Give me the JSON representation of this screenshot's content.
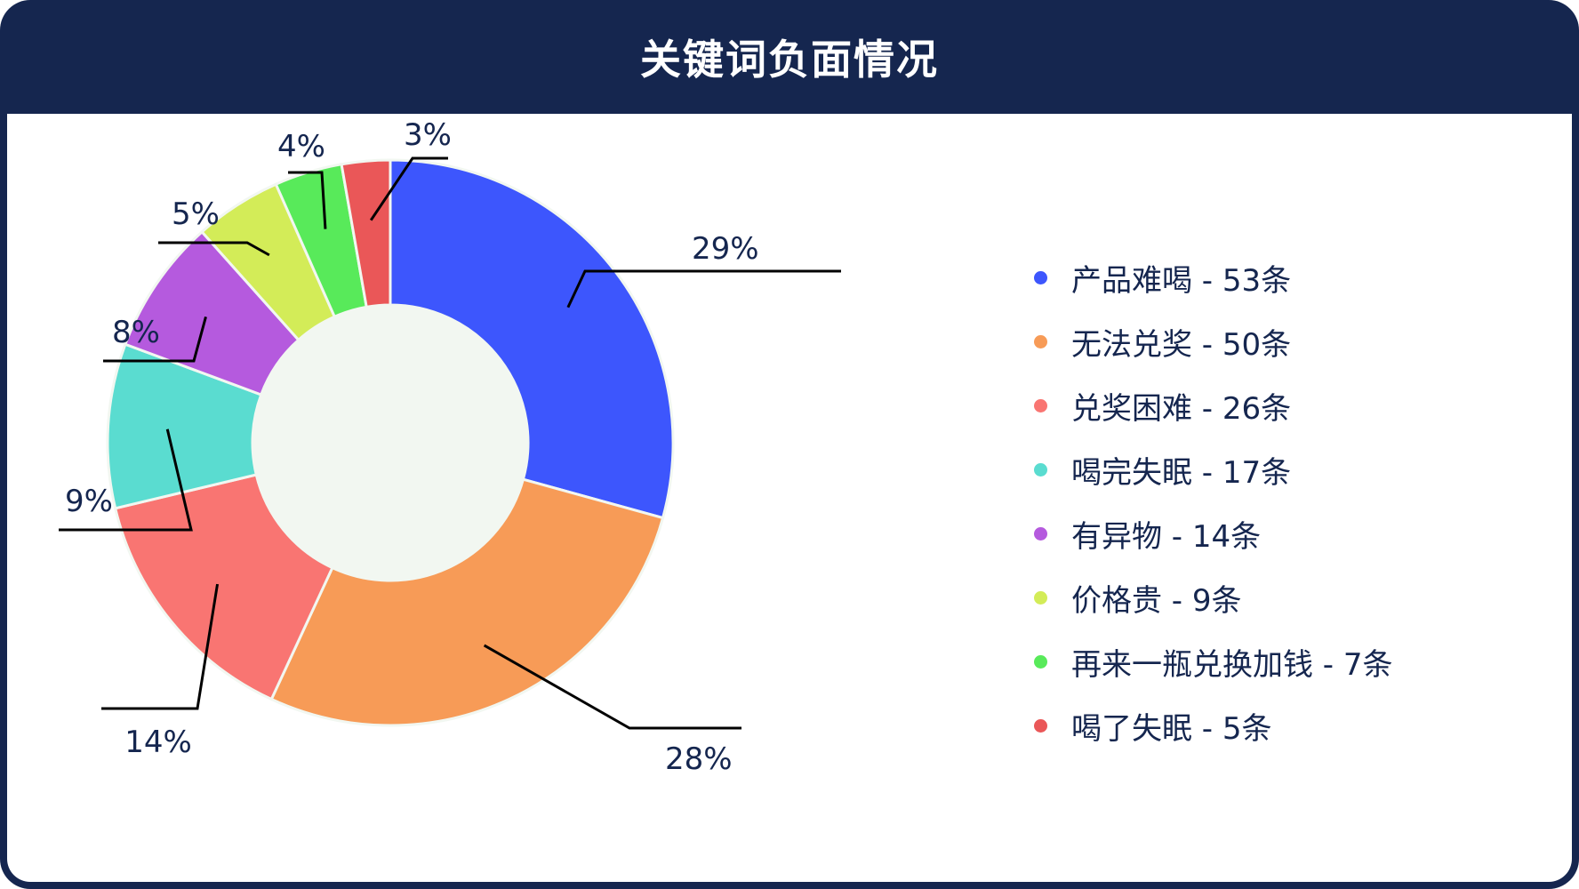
{
  "header": {
    "title": "关键词负面情况"
  },
  "colors": {
    "frame": "#15264f",
    "hole": "#f2f7f1",
    "text": "#15264f"
  },
  "chart_data": {
    "type": "pie",
    "title": "关键词负面情况",
    "donut": true,
    "legend_position": "right",
    "slices": [
      {
        "label": "产品难喝",
        "value": 53,
        "percent_label": "29%",
        "legend_text": "产品难喝 - 53条",
        "color": "#3d56fd"
      },
      {
        "label": "无法兑奖",
        "value": 50,
        "percent_label": "28%",
        "legend_text": "无法兑奖 - 50条",
        "color": "#f79b57"
      },
      {
        "label": "兑奖困难",
        "value": 26,
        "percent_label": "14%",
        "legend_text": "兑奖困难 - 26条",
        "color": "#f97572"
      },
      {
        "label": "喝完失眠",
        "value": 17,
        "percent_label": "9%",
        "legend_text": "喝完失眠 - 17条",
        "color": "#5adcd0"
      },
      {
        "label": "有异物",
        "value": 14,
        "percent_label": "8%",
        "legend_text": "有异物 - 14条",
        "color": "#b55ade"
      },
      {
        "label": "价格贵",
        "value": 9,
        "percent_label": "5%",
        "legend_text": "价格贵 - 9条",
        "color": "#d3ec58"
      },
      {
        "label": "再来一瓶兑换加钱",
        "value": 7,
        "percent_label": "4%",
        "legend_text": "再来一瓶兑换加钱 - 7条",
        "color": "#58ea5a"
      },
      {
        "label": "喝了失眠",
        "value": 5,
        "percent_label": "3%",
        "legend_text": "喝了失眠 - 5条",
        "color": "#ea5758"
      }
    ]
  }
}
